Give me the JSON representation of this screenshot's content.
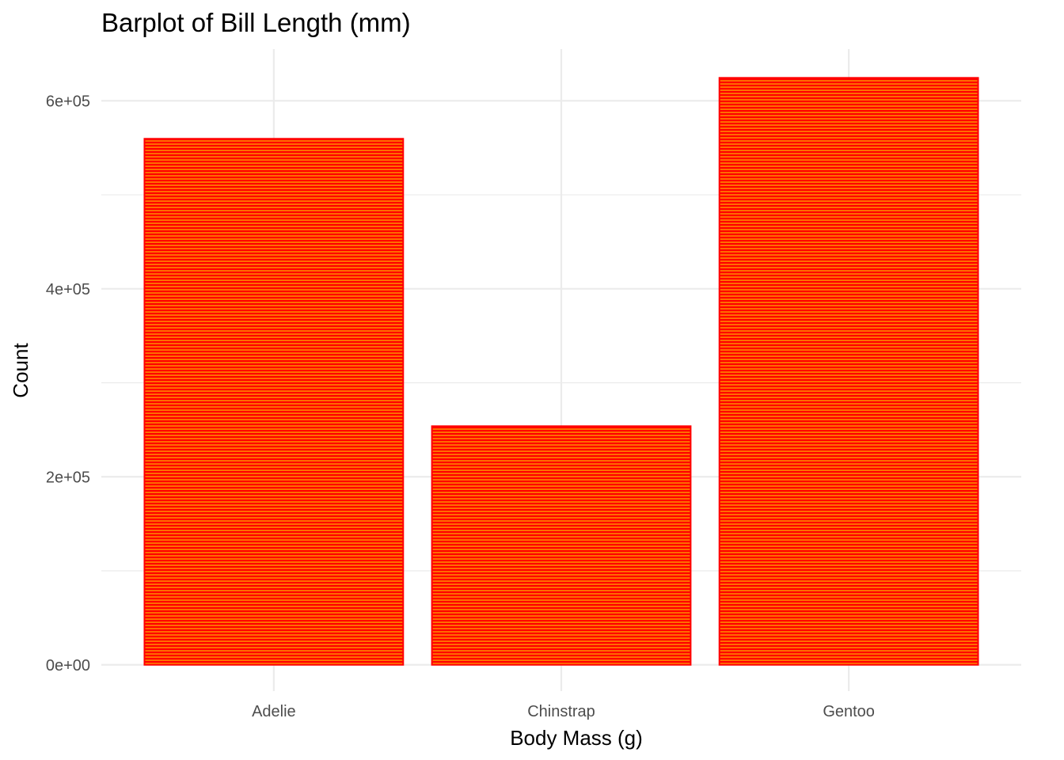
{
  "chart_data": {
    "type": "bar",
    "title": "Barplot of Bill Length (mm)",
    "xlabel": "Body Mass (g)",
    "ylabel": "Count",
    "categories": [
      "Adelie",
      "Chinstrap",
      "Gentoo"
    ],
    "values": [
      559600,
      253850,
      624400
    ],
    "ylim": [
      -28000,
      655000
    ],
    "yticks": [
      0,
      200000,
      400000,
      600000
    ],
    "ytick_labels": [
      "0e+00",
      "2e+05",
      "4e+05",
      "6e+05"
    ],
    "y_minor_ticks": [
      100000,
      300000,
      500000
    ],
    "grid": true,
    "legend": "none",
    "colors": {
      "bar_outline": "#ff0000",
      "bar_stripe": "#ffa500",
      "grid": "#ebebeb"
    }
  }
}
